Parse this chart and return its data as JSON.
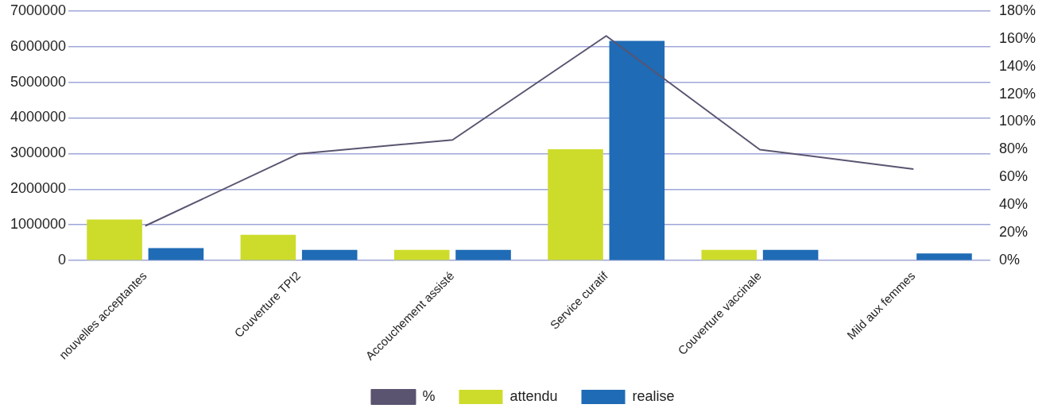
{
  "chart_data": {
    "type": "bar",
    "categories": [
      "nouvelles acceptantes",
      "Couverture TPI2",
      "Accouchement assisté",
      "Service curatif",
      "Couverture vaccinale",
      "Mild aux femmes"
    ],
    "series": [
      {
        "name": "attendu",
        "color": "#cddc2b",
        "values": [
          1150000,
          720000,
          300000,
          3120000,
          300000,
          null
        ]
      },
      {
        "name": "realise",
        "color": "#1f6bb5",
        "values": [
          350000,
          300000,
          300000,
          6160000,
          300000,
          200000
        ]
      },
      {
        "name": "%",
        "type": "line",
        "axis": "y2",
        "color": "#5a5470",
        "values": [
          25,
          77,
          87,
          162,
          80,
          66
        ]
      }
    ],
    "ylim": [
      0,
      7000000
    ],
    "yticks": [
      0,
      1000000,
      2000000,
      3000000,
      4000000,
      5000000,
      6000000,
      7000000
    ],
    "y2lim": [
      0,
      180
    ],
    "y2ticks": [
      {
        "value": 0,
        "label": "0%"
      },
      {
        "value": 20,
        "label": "20%"
      },
      {
        "value": 40,
        "label": "40%"
      },
      {
        "value": 60,
        "label": "60%"
      },
      {
        "value": 80,
        "label": "80%"
      },
      {
        "value": 100,
        "label": "100%"
      },
      {
        "value": 120,
        "label": "120%"
      },
      {
        "value": 140,
        "label": "140%"
      },
      {
        "value": 160,
        "label": "160%"
      },
      {
        "value": 180,
        "label": "180%"
      }
    ],
    "grid": "y",
    "legend": "bottom",
    "marker": "none"
  }
}
